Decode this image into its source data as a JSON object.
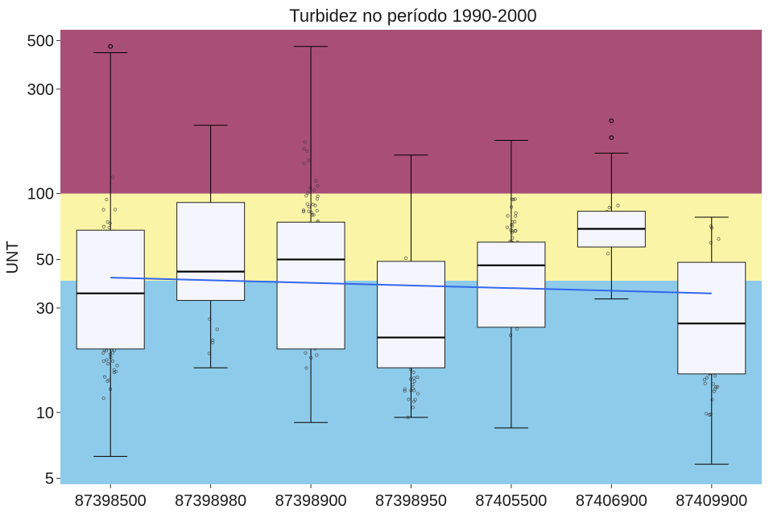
{
  "chart_data": {
    "type": "boxplot",
    "title": "Turbidez no período 1990-2000",
    "ylabel": "UNT",
    "xlabel": "",
    "y_scale": "log",
    "ylim": [
      4.7,
      560
    ],
    "y_ticks": [
      5,
      10,
      30,
      50,
      100,
      300,
      500
    ],
    "y_tick_labels": [
      "5",
      "10",
      "30",
      "50",
      "100",
      "300",
      "500"
    ],
    "grid": false,
    "background_bands": [
      {
        "from": 4.7,
        "to": 40,
        "color": "#8ecbea"
      },
      {
        "from": 40,
        "to": 100,
        "color": "#faf5a6"
      },
      {
        "from": 100,
        "to": 560,
        "color": "#a94f76"
      }
    ],
    "box_fill": "#f5f6fd",
    "trend_color": "#3366ee",
    "categories": [
      "87398500",
      "87398980",
      "87398900",
      "87398950",
      "87405500",
      "87406900",
      "87409900"
    ],
    "boxes": [
      {
        "q1": 19.5,
        "median": 35,
        "q3": 68,
        "whisker_low": 6.3,
        "whisker_high": 440,
        "outliers": [
          470
        ]
      },
      {
        "q1": 32.5,
        "median": 44,
        "q3": 91,
        "whisker_low": 16,
        "whisker_high": 205,
        "outliers": []
      },
      {
        "q1": 19.5,
        "median": 50,
        "q3": 74,
        "whisker_low": 9,
        "whisker_high": 470,
        "outliers": []
      },
      {
        "q1": 16,
        "median": 22,
        "q3": 49,
        "whisker_low": 9.5,
        "whisker_high": 150,
        "outliers": []
      },
      {
        "q1": 24.5,
        "median": 47,
        "q3": 60,
        "whisker_low": 8.5,
        "whisker_high": 175,
        "outliers": []
      },
      {
        "q1": 57,
        "median": 69,
        "q3": 83,
        "whisker_low": 33,
        "whisker_high": 153,
        "outliers": [
          180,
          215
        ]
      },
      {
        "q1": 15,
        "median": 25.5,
        "q3": 48.5,
        "whisker_low": 5.8,
        "whisker_high": 78,
        "outliers": []
      }
    ],
    "trend_line": [
      {
        "category": "87398500",
        "value": 41.3
      },
      {
        "category": "87409900",
        "value": 35.0
      }
    ]
  }
}
